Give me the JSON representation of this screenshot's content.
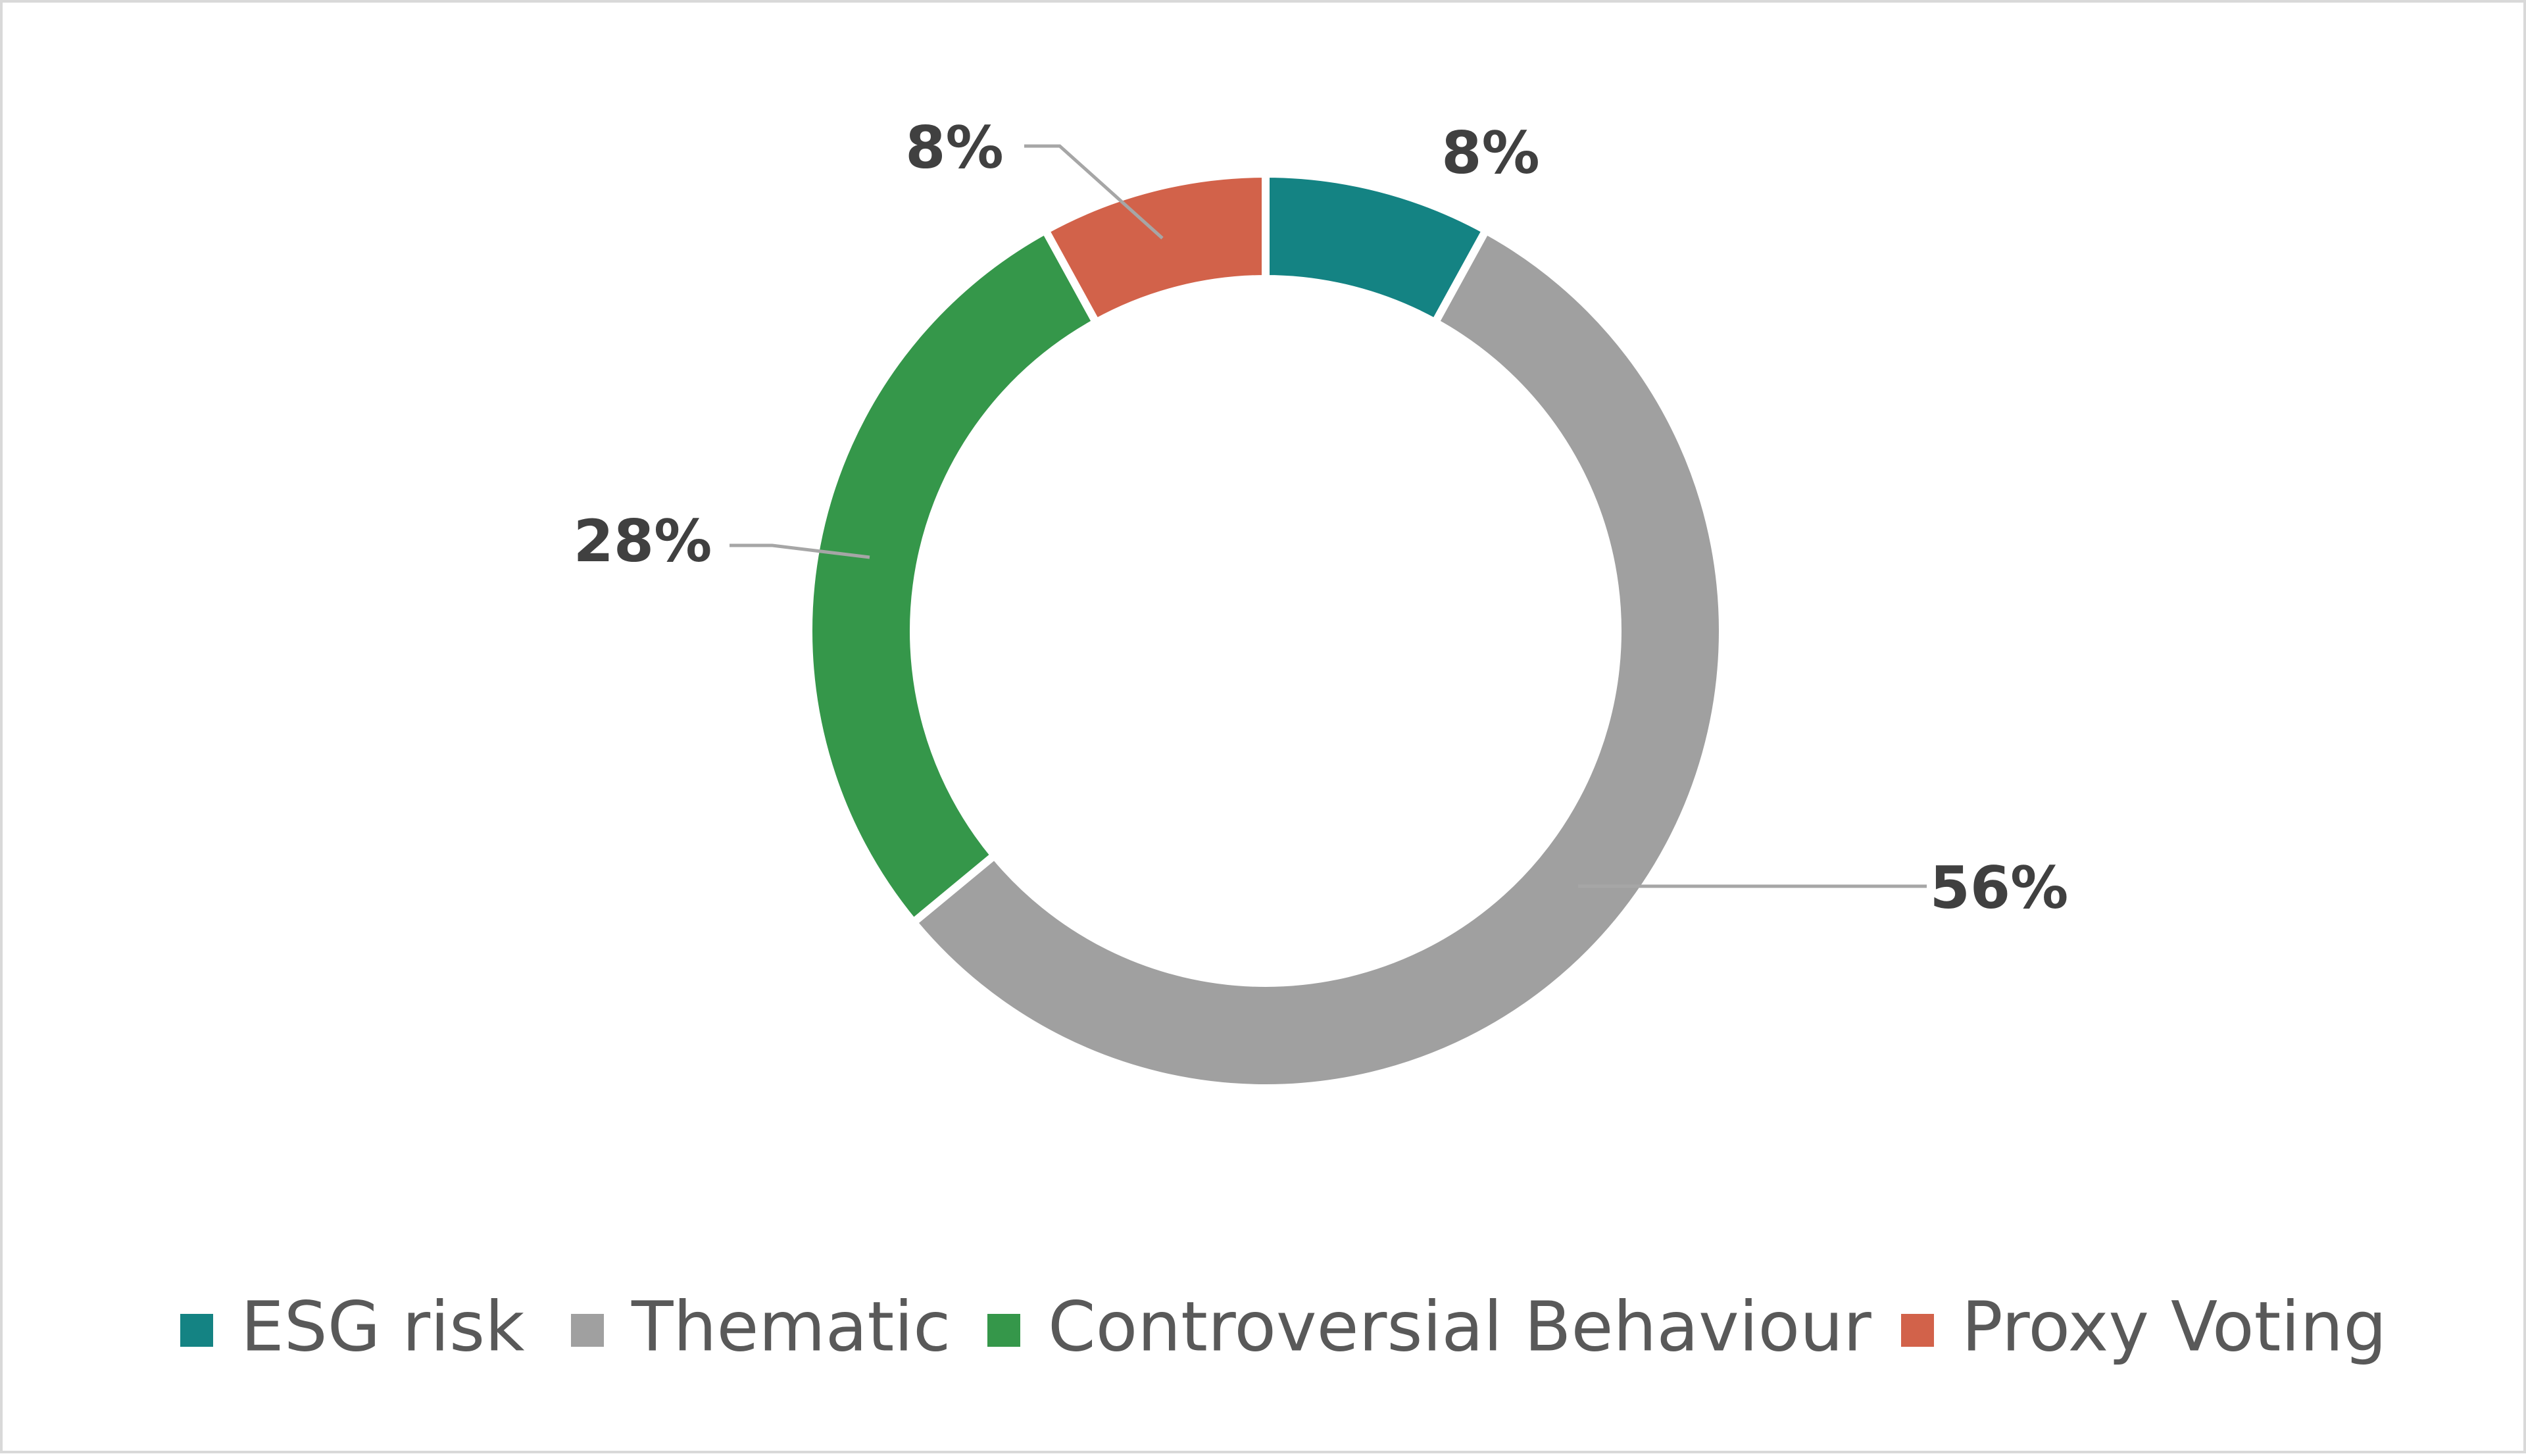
{
  "chart_data": {
    "type": "pie",
    "donut": true,
    "categories": [
      "ESG risk",
      "Thematic",
      "Controversial Behaviour",
      "Proxy Voting"
    ],
    "values": [
      8,
      56,
      28,
      8
    ],
    "data_labels": [
      "8%",
      "56%",
      "28%",
      "8%"
    ],
    "colors": [
      "#148383",
      "#a0a0a0",
      "#35974a",
      "#d2624a"
    ],
    "legend_position": "bottom",
    "title": ""
  }
}
